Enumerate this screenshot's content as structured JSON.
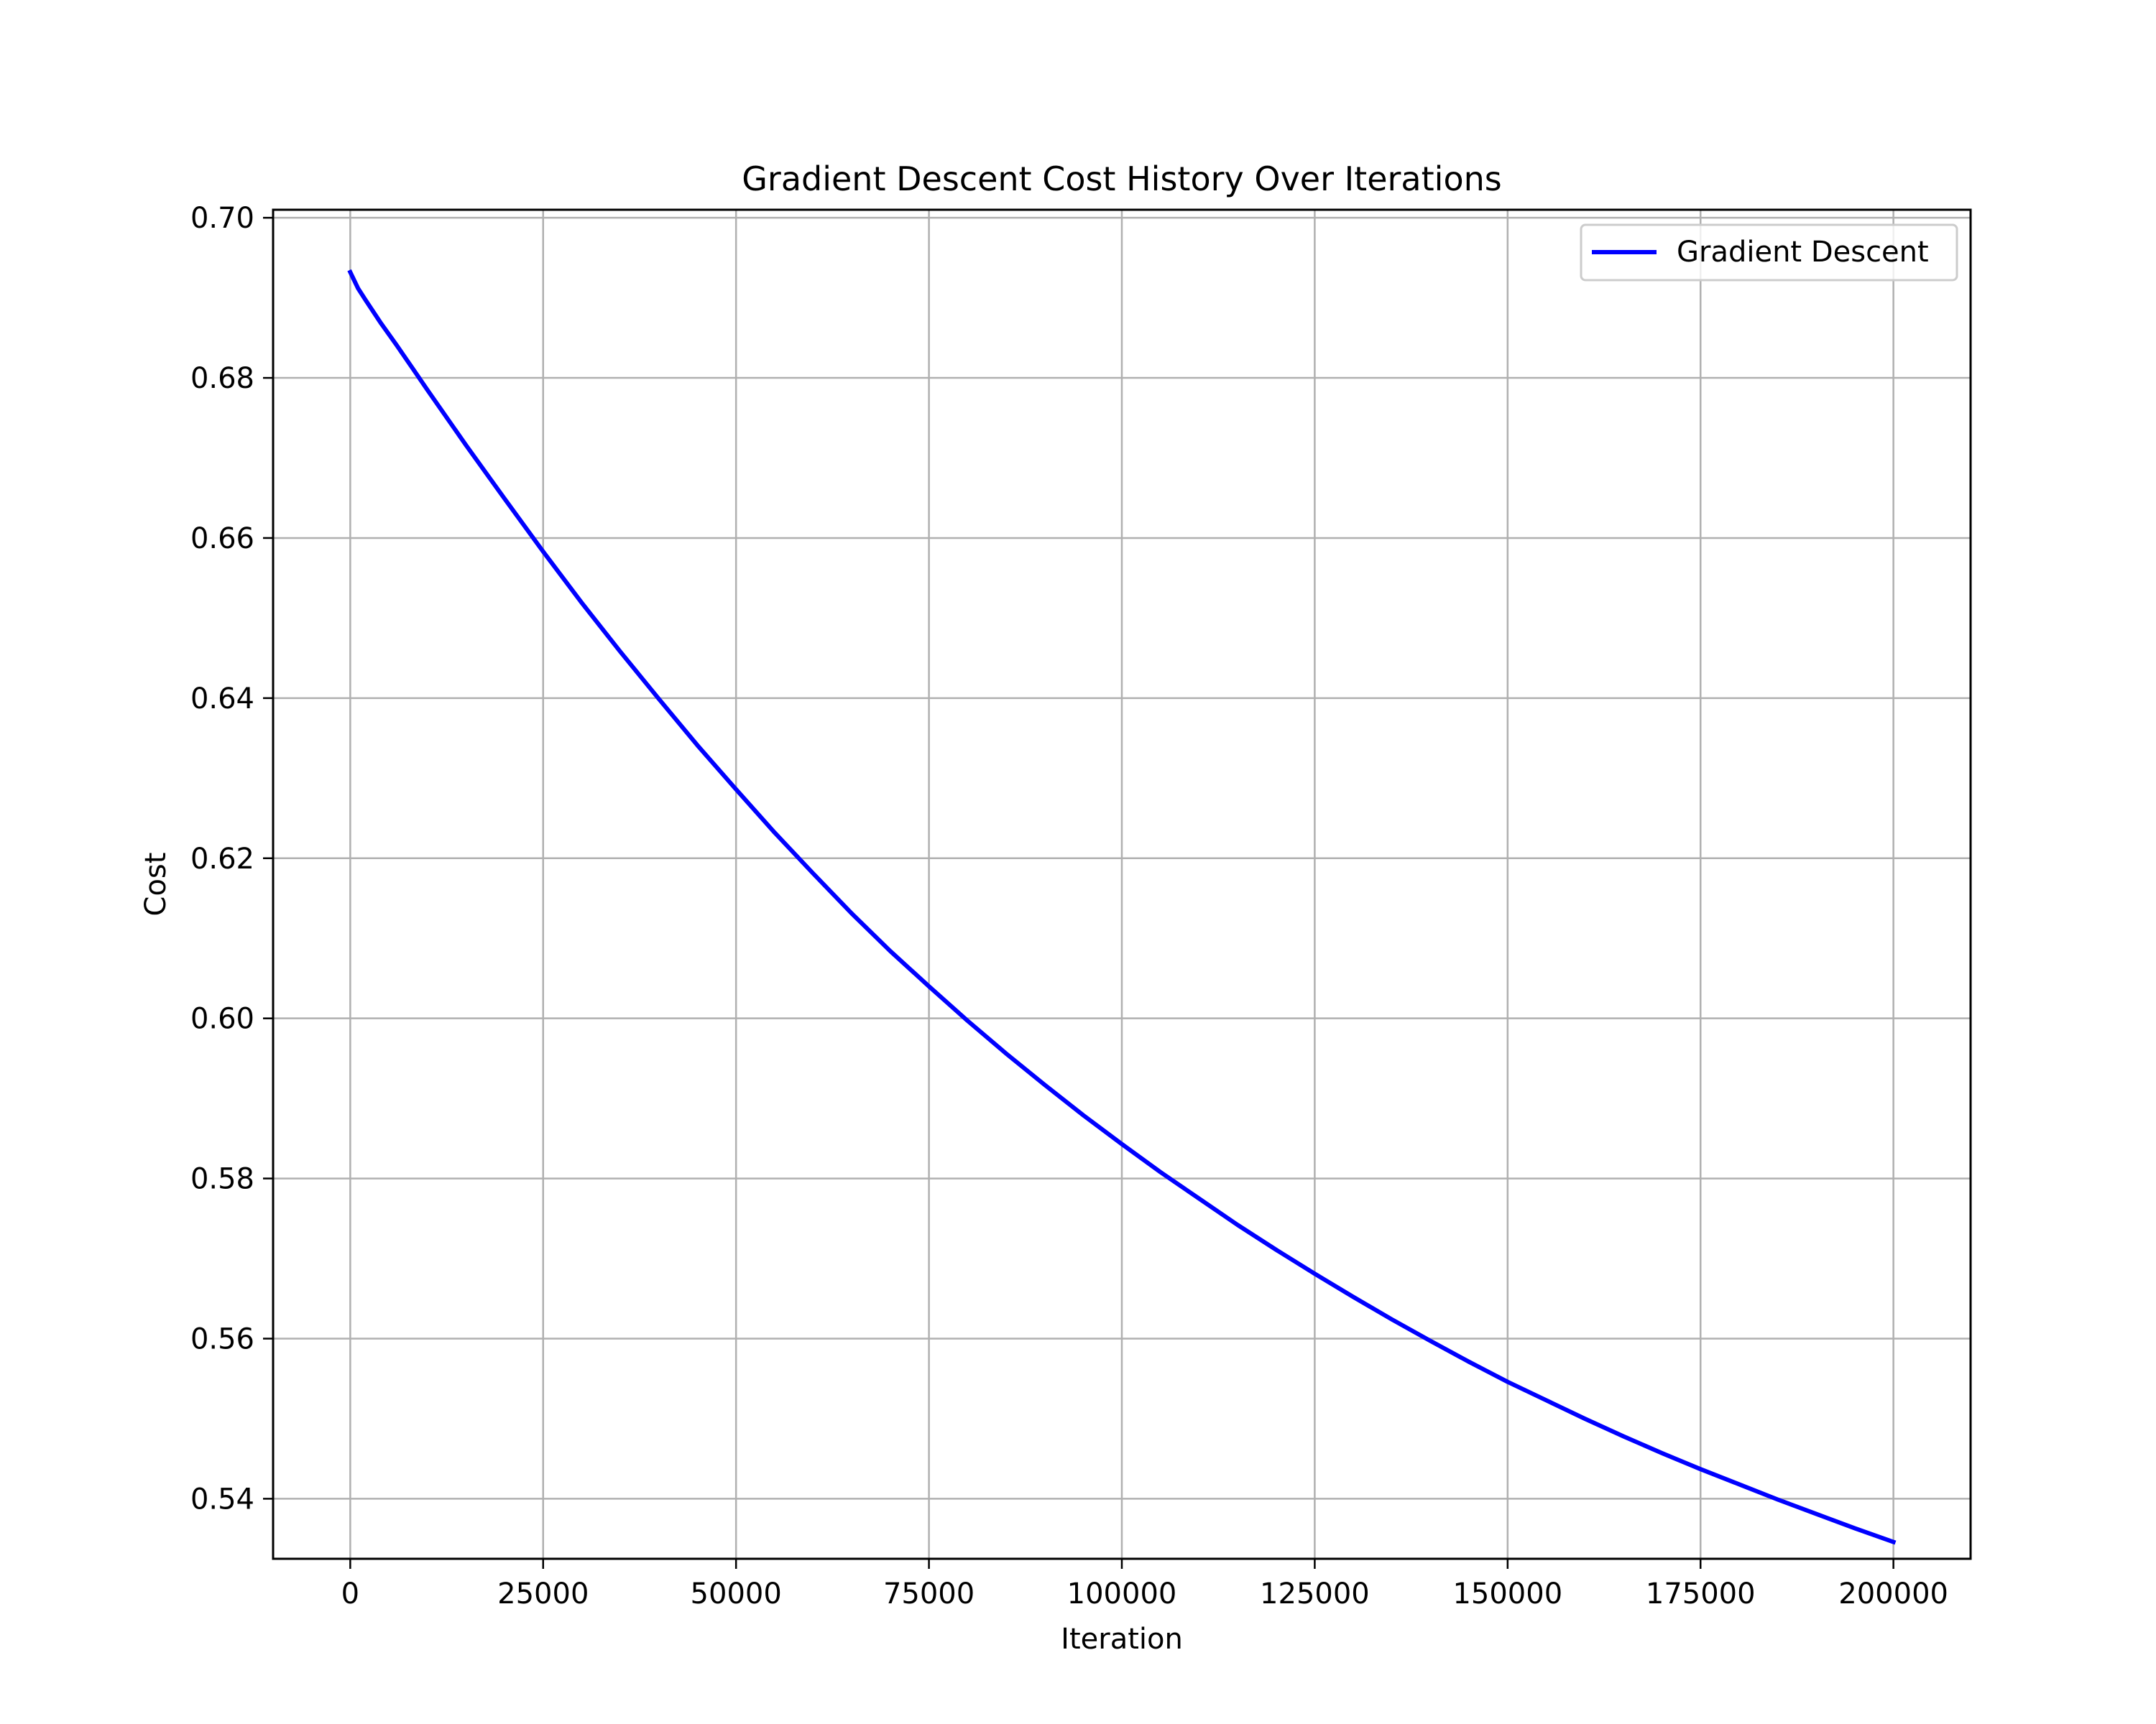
{
  "chart_data": {
    "type": "line",
    "title": "Gradient Descent Cost History Over Iterations",
    "xlabel": "Iteration",
    "ylabel": "Cost",
    "xlim": [
      -10000,
      210000
    ],
    "ylim": [
      0.5325,
      0.701
    ],
    "xticks": [
      0,
      25000,
      50000,
      75000,
      100000,
      125000,
      150000,
      175000,
      200000
    ],
    "yticks": [
      0.54,
      0.56,
      0.58,
      0.6,
      0.62,
      0.64,
      0.66,
      0.68,
      0.7
    ],
    "xtick_labels": [
      "0",
      "25000",
      "50000",
      "75000",
      "100000",
      "125000",
      "150000",
      "175000",
      "200000"
    ],
    "ytick_labels": [
      "0.54",
      "0.56",
      "0.58",
      "0.60",
      "0.62",
      "0.64",
      "0.66",
      "0.68",
      "0.70"
    ],
    "grid": true,
    "legend_position": "top-right",
    "series": [
      {
        "name": "Gradient Descent",
        "color": "#0000ff",
        "x": [
          0,
          1000,
          2000,
          4000,
          6000,
          8000,
          10000,
          15000,
          20000,
          25000,
          30000,
          35000,
          40000,
          45000,
          50000,
          55000,
          60000,
          65000,
          70000,
          75000,
          80000,
          85000,
          90000,
          95000,
          100000,
          105000,
          110000,
          115000,
          120000,
          125000,
          130000,
          135000,
          140000,
          145000,
          150000,
          155000,
          160000,
          165000,
          170000,
          175000,
          180000,
          185000,
          190000,
          195000,
          200000
        ],
        "y": [
          0.6932,
          0.6912,
          0.6897,
          0.6868,
          0.6841,
          0.6813,
          0.6785,
          0.6716,
          0.6649,
          0.6583,
          0.6519,
          0.6458,
          0.6399,
          0.6341,
          0.6286,
          0.6232,
          0.6181,
          0.6131,
          0.6084,
          0.604,
          0.5997,
          0.5956,
          0.5917,
          0.5879,
          0.5843,
          0.5808,
          0.5775,
          0.5742,
          0.5711,
          0.5681,
          0.5652,
          0.5624,
          0.5597,
          0.5571,
          0.5546,
          0.5523,
          0.55,
          0.5478,
          0.5457,
          0.5437,
          0.5418,
          0.5399,
          0.5381,
          0.5363,
          0.5346
        ]
      }
    ]
  }
}
